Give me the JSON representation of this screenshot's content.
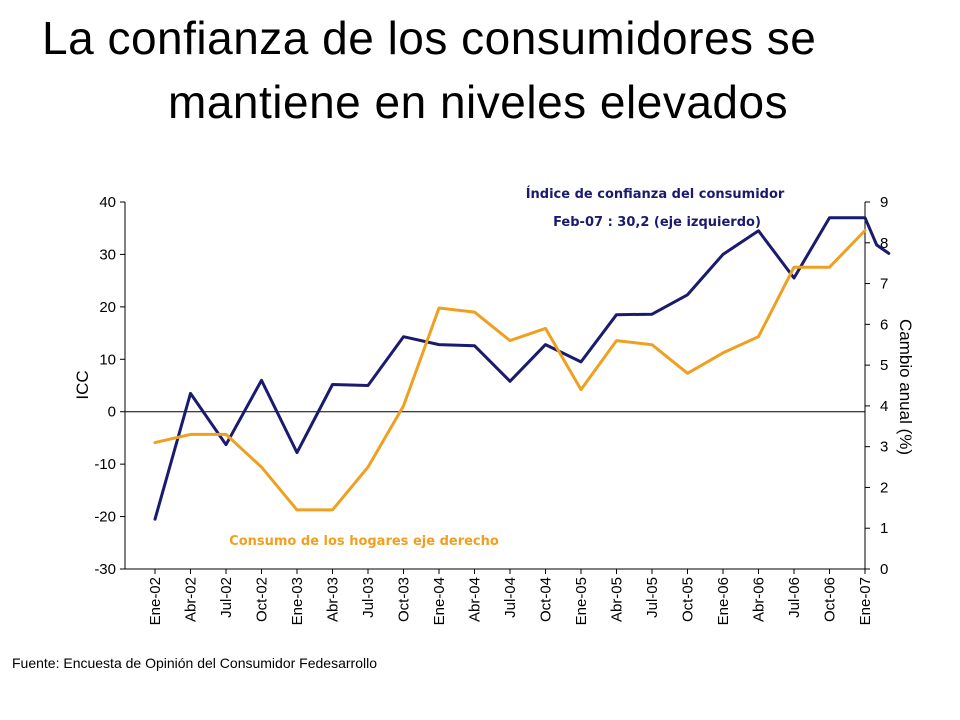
{
  "title": {
    "line1": "La confianza de los consumidores se",
    "line2": "mantiene en niveles elevados"
  },
  "source": "Fuente: Encuesta de Opinión del Consumidor Fedesarrollo",
  "colors": {
    "icc": "#1a1a6e",
    "consumo": "#f0a020"
  },
  "chart_data": {
    "type": "line",
    "x": [
      "Ene-02",
      "Abr-02",
      "Jul-02",
      "Oct-02",
      "Ene-03",
      "Abr-03",
      "Jul-03",
      "Oct-03",
      "Ene-04",
      "Abr-04",
      "Jul-04",
      "Oct-04",
      "Ene-05",
      "Abr-05",
      "Jul-05",
      "Oct-05",
      "Ene-06",
      "Abr-06",
      "Jul-06",
      "Oct-06",
      "Ene-07"
    ],
    "left_axis": {
      "label": "ICC",
      "ylim": [
        -30,
        40
      ],
      "ticks": [
        40,
        30,
        20,
        10,
        0,
        -10,
        -20,
        -30
      ]
    },
    "right_axis": {
      "label": "Cambio anual (%)",
      "ylim": [
        0,
        9
      ],
      "ticks": [
        9,
        8,
        7,
        6,
        5,
        4,
        3,
        2,
        1,
        0
      ]
    },
    "series": [
      {
        "name": "Índice de confianza del consumidor",
        "axis": "left",
        "x": [
          0,
          1,
          2,
          3,
          4,
          5,
          6,
          7,
          8,
          9,
          10,
          11,
          12,
          13,
          14,
          15,
          16,
          17,
          18,
          19,
          20,
          20.33,
          20.67
        ],
        "values": [
          -20.5,
          3.5,
          -6.3,
          6.0,
          -7.8,
          5.2,
          5.0,
          14.3,
          12.8,
          12.6,
          5.8,
          12.8,
          9.5,
          18.5,
          18.6,
          22.3,
          30.0,
          34.5,
          25.5,
          37.0,
          37.0,
          31.8,
          30.2
        ]
      },
      {
        "name": "Consumo de los hogares eje derecho",
        "axis": "right",
        "x": [
          0,
          1,
          2,
          3,
          4,
          5,
          6,
          7,
          8,
          9,
          10,
          11,
          12,
          13,
          14,
          15,
          16,
          17,
          18,
          19,
          20
        ],
        "values": [
          3.1,
          3.3,
          3.3,
          2.5,
          1.45,
          1.45,
          2.5,
          4.0,
          6.4,
          6.3,
          5.6,
          5.9,
          4.4,
          5.6,
          5.5,
          4.8,
          5.3,
          5.7,
          7.4,
          7.4,
          8.3
        ]
      }
    ],
    "annotations": [
      {
        "text": "Índice de confianza del consumidor",
        "series": 0
      },
      {
        "text": "Feb-07 : 30,2 (eje izquierdo)",
        "series": 0
      },
      {
        "text": "Consumo de los hogares eje derecho",
        "series": 1
      }
    ]
  }
}
